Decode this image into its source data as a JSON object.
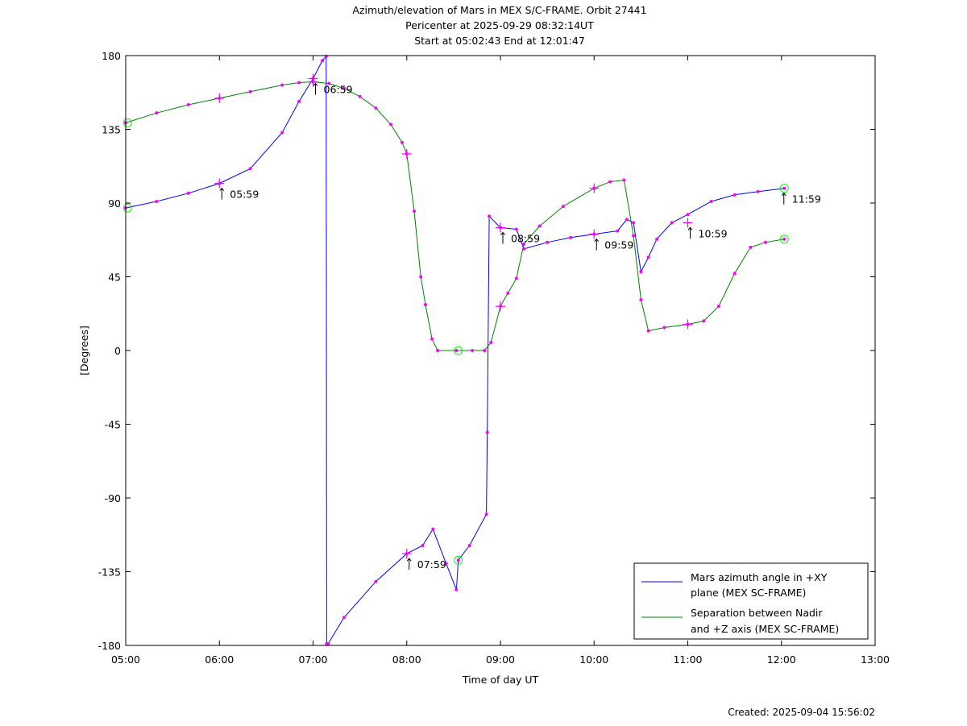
{
  "header": {
    "title": "Azimuth/elevation of Mars in MEX S/C-FRAME.  Orbit 27441",
    "subtitle_1": "Pericenter at 2025-09-29 08:32:14UT",
    "subtitle_2": "Start at 05:02:43 End at 12:01:47"
  },
  "footer": {
    "created": "Created: 2025-09-04 15:56:02"
  },
  "chart_data": {
    "type": "line",
    "xlabel": "Time of day UT",
    "ylabel": "[Degrees]",
    "xlim": [
      5,
      13
    ],
    "ylim": [
      -180,
      180
    ],
    "x_ticks": [
      5,
      6,
      7,
      8,
      9,
      10,
      11,
      12,
      13
    ],
    "x_tick_labels": [
      "05:00",
      "06:00",
      "07:00",
      "08:00",
      "09:00",
      "10:00",
      "11:00",
      "12:00",
      "13:00"
    ],
    "y_ticks": [
      -180,
      -135,
      -90,
      -45,
      0,
      45,
      90,
      135,
      180
    ],
    "y_tick_labels": [
      "-180",
      "-135",
      "-90",
      "-45",
      "0",
      "45",
      "90",
      "135",
      "180"
    ],
    "grid": false,
    "legend_position": "bottom-right",
    "series": [
      {
        "name": "Mars azimuth angle in +XY plane (MEX SC-FRAME)",
        "legend_lines": [
          "Mars azimuth angle in +XY",
          "plane (MEX SC-FRAME)"
        ],
        "color": "#0000ff",
        "x": [
          5.0,
          5.33,
          5.67,
          6.0,
          6.33,
          6.67,
          6.85,
          7.0,
          7.1,
          7.14,
          7.145,
          7.16,
          7.33,
          7.67,
          8.0,
          8.17,
          8.28,
          8.42,
          8.53,
          8.55,
          8.67,
          8.85,
          8.86,
          8.88,
          9.0,
          9.17,
          9.25,
          9.5,
          9.75,
          10.0,
          10.25,
          10.35,
          10.42,
          10.5,
          10.58,
          10.67,
          10.83,
          11.0,
          11.25,
          11.5,
          11.75,
          12.03
        ],
        "y": [
          87,
          91,
          96,
          102,
          111,
          133,
          152,
          166,
          177,
          179.5,
          -179,
          -179,
          -163,
          -141,
          -124,
          -119,
          -109,
          -130,
          -146,
          -128,
          -119,
          -100,
          -50,
          82,
          75,
          74,
          62,
          66,
          69,
          71,
          73,
          80,
          78,
          48,
          57,
          68,
          78,
          83,
          91,
          95,
          97,
          99
        ]
      },
      {
        "name": "Separation between Nadir and +Z axis (MEX SC-FRAME)",
        "legend_lines": [
          "Separation between Nadir",
          "and +Z axis (MEX SC-FRAME)"
        ],
        "color": "#008000",
        "x": [
          5.0,
          5.33,
          5.67,
          6.0,
          6.33,
          6.67,
          6.85,
          7.0,
          7.17,
          7.33,
          7.5,
          7.67,
          7.83,
          7.95,
          8.0,
          8.08,
          8.15,
          8.2,
          8.27,
          8.33,
          8.53,
          8.7,
          8.83,
          8.9,
          9.0,
          9.08,
          9.17,
          9.25,
          9.42,
          9.67,
          10.0,
          10.17,
          10.32,
          10.42,
          10.5,
          10.58,
          10.75,
          11.0,
          11.17,
          11.33,
          11.5,
          11.67,
          11.83,
          12.03
        ],
        "y": [
          139,
          145,
          150,
          154,
          158,
          162,
          163.5,
          164,
          163,
          160,
          155,
          148,
          138,
          127,
          120,
          85,
          45,
          28,
          7,
          0,
          0,
          0,
          0,
          5,
          27,
          35,
          44,
          65,
          76,
          88,
          99,
          103,
          104,
          70,
          31,
          12,
          14,
          16,
          18,
          27,
          47,
          63,
          66,
          68
        ]
      }
    ],
    "annotations": [
      {
        "label": "05:59",
        "x": 6.0,
        "y": 102
      },
      {
        "label": "06:59",
        "x": 7.0,
        "y": 166
      },
      {
        "label": "07:59",
        "x": 8.0,
        "y": -124
      },
      {
        "label": "08:59",
        "x": 9.0,
        "y": 75
      },
      {
        "label": "09:59",
        "x": 10.0,
        "y": 71
      },
      {
        "label": "10:59",
        "x": 11.0,
        "y": 78
      },
      {
        "label": "11:59",
        "x": 12.0,
        "y": 99
      }
    ],
    "hour_markers_plus": [
      {
        "x": 6.0,
        "y": 102
      },
      {
        "x": 7.0,
        "y": 166
      },
      {
        "x": 8.0,
        "y": -124
      },
      {
        "x": 9.0,
        "y": 75
      },
      {
        "x": 10.0,
        "y": 71
      },
      {
        "x": 11.0,
        "y": 78
      },
      {
        "x": 6.0,
        "y": 154
      },
      {
        "x": 7.0,
        "y": 164
      },
      {
        "x": 8.0,
        "y": 120
      },
      {
        "x": 9.0,
        "y": 27
      },
      {
        "x": 10.0,
        "y": 99
      },
      {
        "x": 11.0,
        "y": 16
      }
    ],
    "pericenter_start_end_circles": [
      {
        "x": 5.02,
        "y": 87
      },
      {
        "x": 5.02,
        "y": 139
      },
      {
        "x": 8.55,
        "y": -128
      },
      {
        "x": 8.55,
        "y": 0
      },
      {
        "x": 12.03,
        "y": 99
      },
      {
        "x": 12.03,
        "y": 68
      }
    ],
    "colors": {
      "markers": "#ff00ff",
      "circles": "#00ff00",
      "axes": "#000000"
    }
  }
}
